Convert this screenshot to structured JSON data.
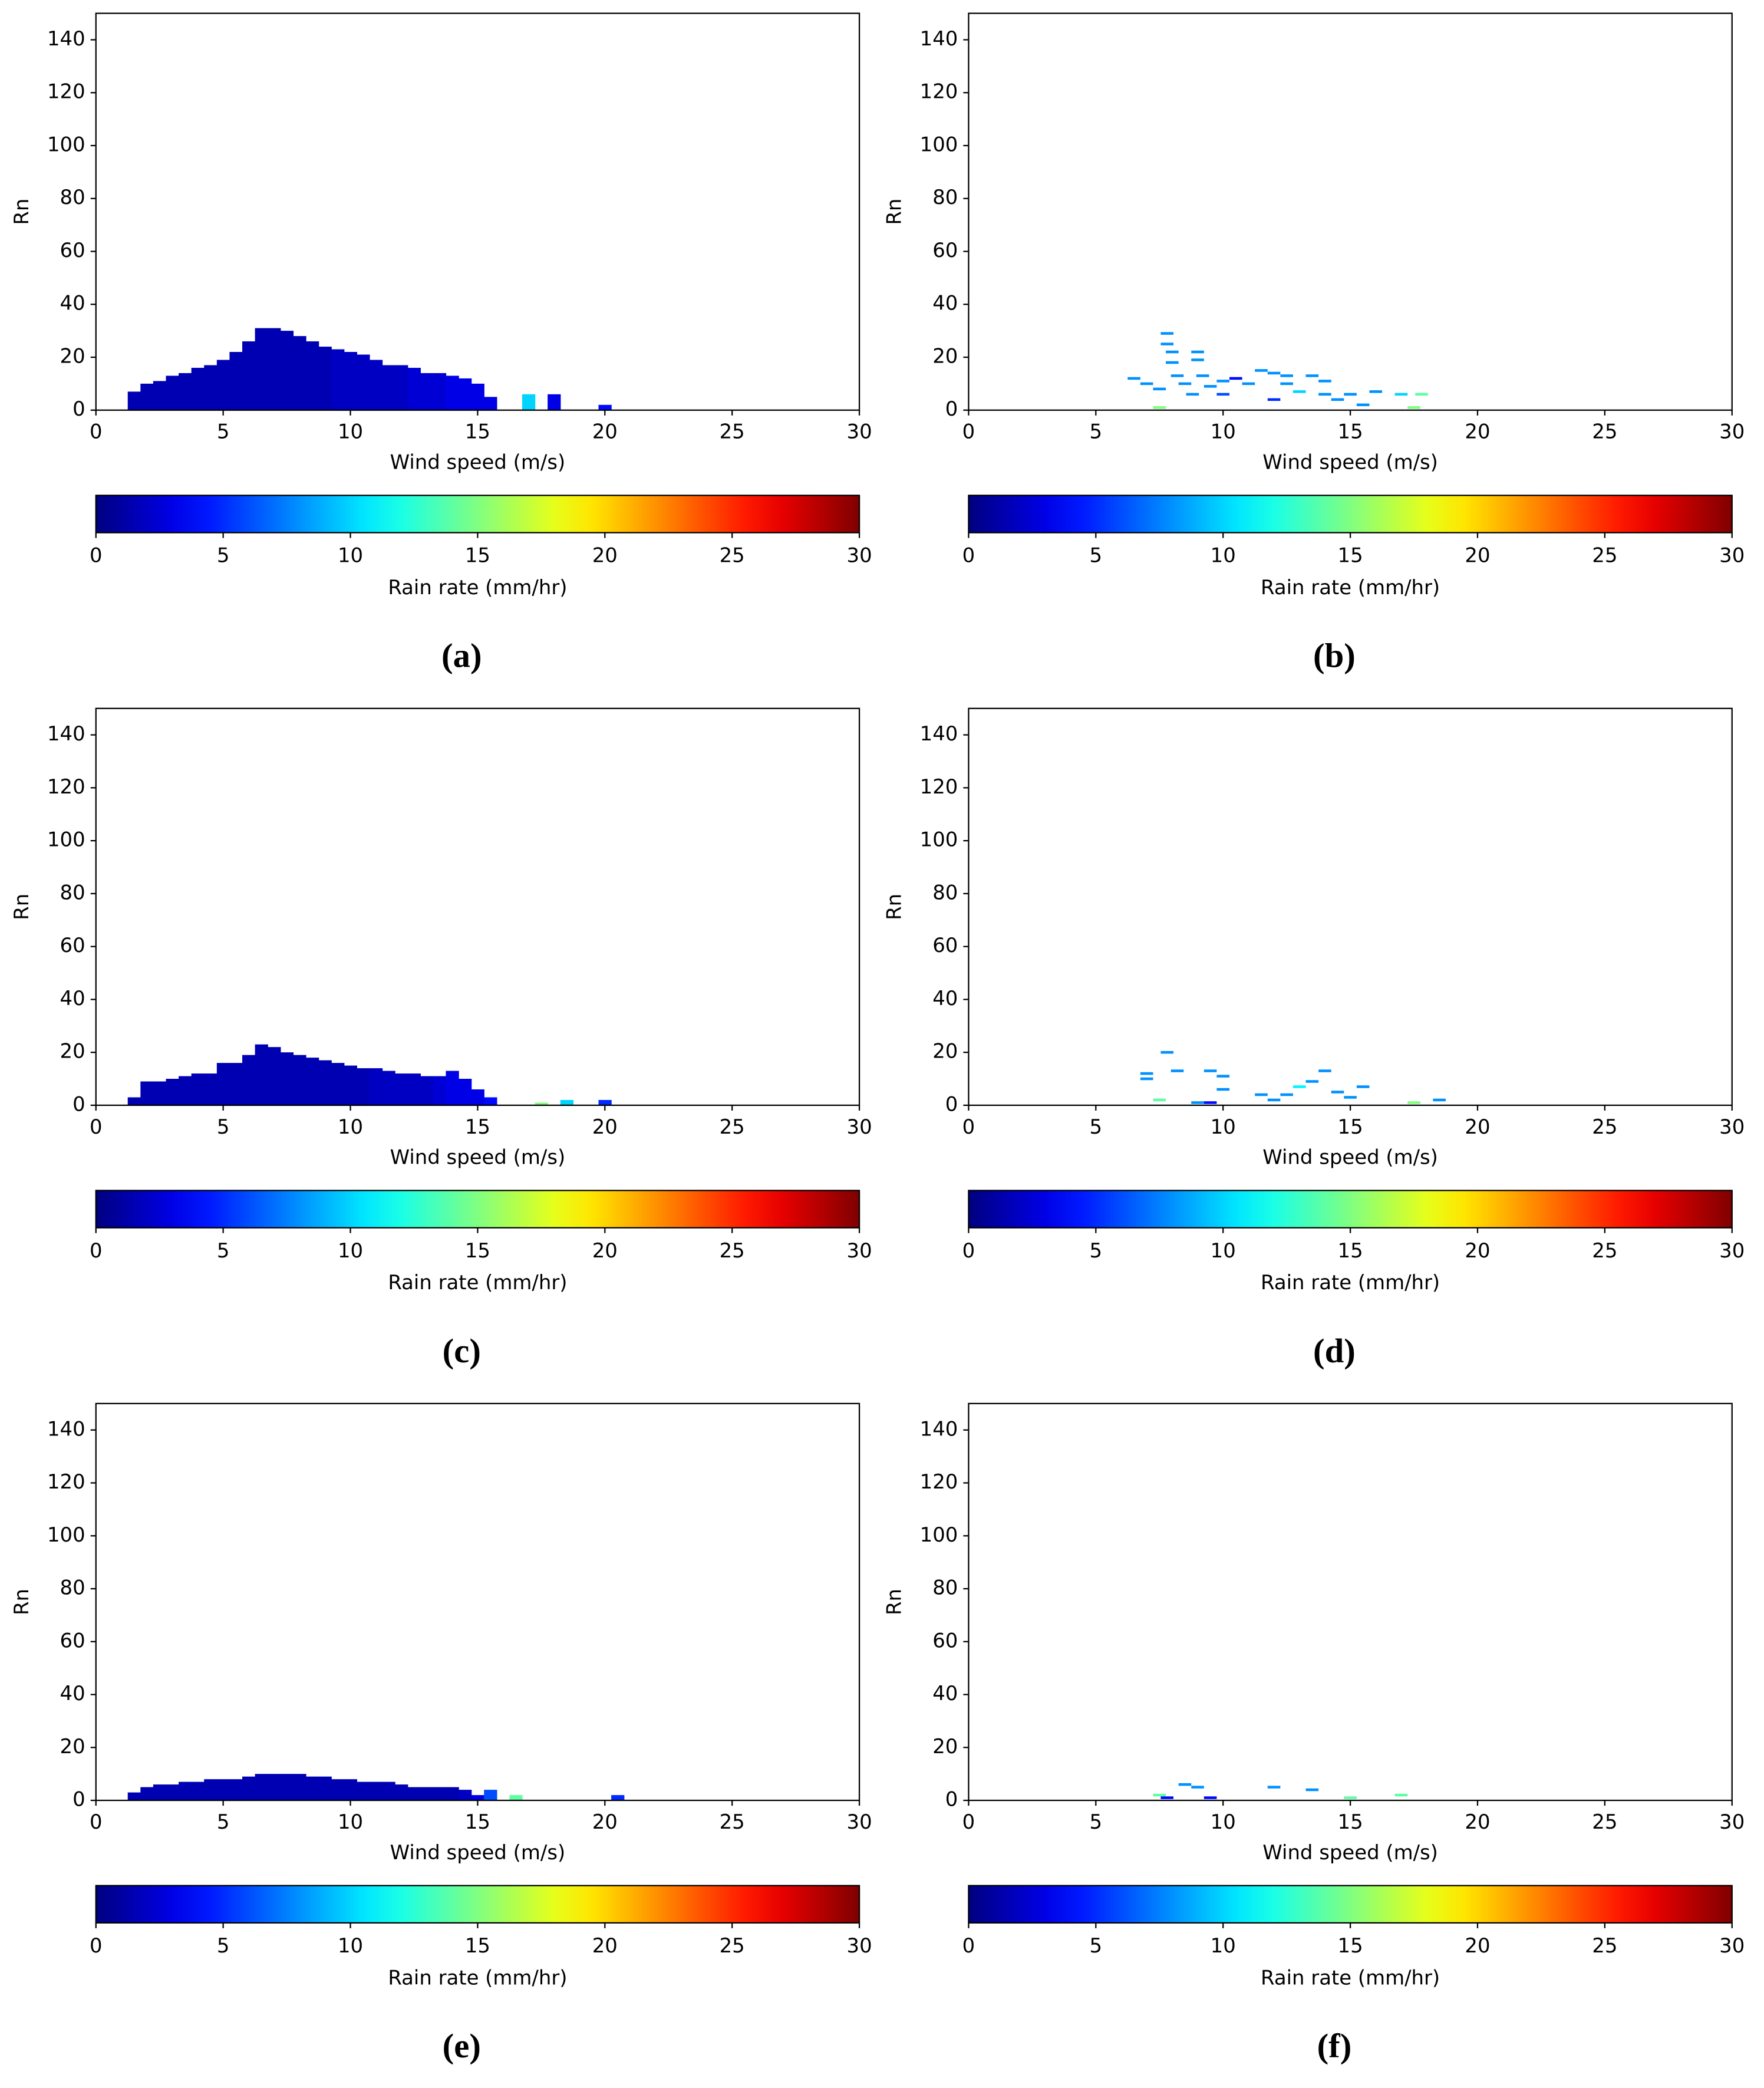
{
  "chart_data": [
    {
      "type": "heatmap",
      "label": "(a)",
      "xlabel": "Wind speed (m/s)",
      "ylabel": "Rn",
      "xlim": [
        0,
        30
      ],
      "xticks": [
        0,
        5,
        10,
        15,
        20,
        25,
        30
      ],
      "ylim": [
        0,
        150
      ],
      "yticks": [
        0,
        20,
        40,
        60,
        80,
        100,
        120,
        140
      ],
      "colormap": "jet",
      "colorbar": {
        "label": "Rain rate (mm/hr)",
        "xlim": [
          0,
          30
        ],
        "xticks": [
          0,
          5,
          10,
          15,
          20,
          25,
          30
        ]
      },
      "x": [
        1.5,
        2,
        2.5,
        3,
        3.5,
        4,
        4.5,
        5,
        5.5,
        6,
        6.5,
        7,
        7.5,
        8,
        8.5,
        9,
        9.5,
        10,
        10.5,
        11,
        11.5,
        12,
        12.5,
        13,
        13.5,
        14,
        14.5,
        15,
        15.5,
        17,
        18,
        20
      ],
      "y": [
        7,
        10,
        11,
        13,
        14,
        16,
        17,
        19,
        22,
        26,
        31,
        31,
        30,
        28,
        26,
        24,
        23,
        22,
        21,
        19,
        17,
        17,
        16,
        14,
        14,
        13,
        12,
        10,
        5,
        6,
        6,
        2
      ],
      "values": [
        1.5,
        1.5,
        1.5,
        1.5,
        1.5,
        1.5,
        1.5,
        1.5,
        1.5,
        1.5,
        1.5,
        1.5,
        1.5,
        1.5,
        1.5,
        1.5,
        2,
        2,
        2,
        2,
        2,
        2,
        2.5,
        2.5,
        2.5,
        3,
        3,
        3,
        3,
        10,
        3,
        4
      ]
    },
    {
      "type": "scatter",
      "label": "(b)",
      "xlabel": "Wind speed (m/s)",
      "ylabel": "Rn",
      "xlim": [
        0,
        30
      ],
      "xticks": [
        0,
        5,
        10,
        15,
        20,
        25,
        30
      ],
      "ylim": [
        0,
        150
      ],
      "yticks": [
        0,
        20,
        40,
        60,
        80,
        100,
        120,
        140
      ],
      "colormap": "jet",
      "colorbar": {
        "label": "Rain rate (mm/hr)",
        "xlim": [
          0,
          30
        ],
        "xticks": [
          0,
          5,
          10,
          15,
          20,
          25,
          30
        ]
      },
      "x": [
        6.5,
        7,
        7.5,
        7.5,
        7.8,
        7.8,
        8,
        8,
        8.2,
        8.5,
        8.8,
        9,
        9,
        9.2,
        9.5,
        10,
        10,
        10.5,
        11,
        11.5,
        12,
        12,
        12.5,
        12.5,
        13,
        13.5,
        14,
        14,
        14.5,
        15,
        15.5,
        16,
        17,
        17.5,
        17.8
      ],
      "y": [
        12,
        10,
        8,
        1,
        29,
        25,
        22,
        18,
        13,
        10,
        6,
        22,
        19,
        13,
        9,
        11,
        6,
        12,
        10,
        15,
        14,
        4,
        13,
        10,
        7,
        13,
        11,
        6,
        4,
        6,
        2,
        7,
        6,
        1,
        6
      ],
      "values": [
        8,
        8,
        8,
        15,
        8,
        8,
        8,
        8,
        8,
        8,
        8,
        8,
        8,
        8,
        8,
        8,
        6,
        4,
        8,
        8,
        8,
        5,
        8,
        8,
        10,
        8,
        8,
        8,
        8,
        8,
        8,
        8,
        10,
        15,
        14
      ]
    },
    {
      "type": "heatmap",
      "label": "(c)",
      "xlabel": "Wind speed (m/s)",
      "ylabel": "Rn",
      "xlim": [
        0,
        30
      ],
      "xticks": [
        0,
        5,
        10,
        15,
        20,
        25,
        30
      ],
      "ylim": [
        0,
        150
      ],
      "yticks": [
        0,
        20,
        40,
        60,
        80,
        100,
        120,
        140
      ],
      "colormap": "jet",
      "colorbar": {
        "label": "Rain rate (mm/hr)",
        "xlim": [
          0,
          30
        ],
        "xticks": [
          0,
          5,
          10,
          15,
          20,
          25,
          30
        ]
      },
      "x": [
        1.5,
        2,
        2.5,
        3,
        3.5,
        4,
        4.5,
        5,
        5.5,
        6,
        6.5,
        7,
        7.5,
        8,
        8.5,
        9,
        9.5,
        10,
        10.5,
        11,
        11.5,
        12,
        12.5,
        13,
        13.5,
        14,
        14.5,
        15,
        15.5,
        17.5,
        18.5,
        20
      ],
      "y": [
        3,
        9,
        9,
        10,
        11,
        12,
        12,
        16,
        16,
        19,
        23,
        22,
        20,
        19,
        18,
        17,
        16,
        15,
        14,
        14,
        13,
        12,
        12,
        11,
        11,
        13,
        10,
        6,
        3,
        1,
        2,
        2
      ],
      "values": [
        1.5,
        1.5,
        1.5,
        1.5,
        1.5,
        1.5,
        1.5,
        1.5,
        1.5,
        1.5,
        1.5,
        1.5,
        1.5,
        1.5,
        1.5,
        1.5,
        1.5,
        1.5,
        1.5,
        2,
        2,
        2,
        2,
        2,
        2.5,
        3,
        3,
        3,
        4,
        15,
        10,
        5
      ]
    },
    {
      "type": "scatter",
      "label": "(d)",
      "xlabel": "Wind speed (m/s)",
      "ylabel": "Rn",
      "xlim": [
        0,
        30
      ],
      "xticks": [
        0,
        5,
        10,
        15,
        20,
        25,
        30
      ],
      "ylim": [
        0,
        150
      ],
      "yticks": [
        0,
        20,
        40,
        60,
        80,
        100,
        120,
        140
      ],
      "colormap": "jet",
      "colorbar": {
        "label": "Rain rate (mm/hr)",
        "xlim": [
          0,
          30
        ],
        "xticks": [
          0,
          5,
          10,
          15,
          20,
          25,
          30
        ]
      },
      "x": [
        7,
        7,
        7.5,
        7.8,
        8.2,
        9,
        9.5,
        9.5,
        10,
        10,
        11.5,
        12,
        12.5,
        13,
        13.5,
        14,
        14.5,
        15,
        15.5,
        17.5,
        18.5
      ],
      "y": [
        12,
        10,
        2,
        20,
        13,
        1,
        13,
        1,
        11,
        6,
        4,
        2,
        4,
        7,
        9,
        13,
        5,
        3,
        7,
        1,
        2
      ],
      "values": [
        8,
        8,
        14,
        8,
        8,
        8,
        8,
        4,
        8,
        8,
        8,
        8,
        8,
        11,
        8,
        8,
        8,
        8,
        8,
        15,
        8
      ]
    },
    {
      "type": "heatmap",
      "label": "(e)",
      "xlabel": "Wind speed (m/s)",
      "ylabel": "Rn",
      "xlim": [
        0,
        30
      ],
      "xticks": [
        0,
        5,
        10,
        15,
        20,
        25,
        30
      ],
      "ylim": [
        0,
        150
      ],
      "yticks": [
        0,
        20,
        40,
        60,
        80,
        100,
        120,
        140
      ],
      "colormap": "jet",
      "colorbar": {
        "label": "Rain rate (mm/hr)",
        "xlim": [
          0,
          30
        ],
        "xticks": [
          0,
          5,
          10,
          15,
          20,
          25,
          30
        ]
      },
      "x": [
        1.5,
        2,
        2.5,
        3,
        3.5,
        4,
        4.5,
        5,
        5.5,
        6,
        6.5,
        7,
        7.5,
        8,
        8.5,
        9,
        9.5,
        10,
        10.5,
        11,
        11.5,
        12,
        12.5,
        13,
        13.5,
        14,
        14.5,
        15,
        15.5,
        16.5,
        20.5
      ],
      "y": [
        3,
        5,
        6,
        6,
        7,
        7,
        8,
        8,
        8,
        9,
        10,
        10,
        10,
        10,
        9,
        9,
        8,
        8,
        7,
        7,
        7,
        6,
        5,
        5,
        5,
        5,
        4,
        2,
        4,
        2,
        2
      ],
      "values": [
        1.5,
        1.5,
        1.5,
        1.5,
        1.5,
        1.5,
        1.5,
        1.5,
        1.5,
        1.5,
        1.5,
        1.5,
        1.5,
        1.5,
        1.5,
        1.5,
        1.5,
        1.5,
        1.5,
        1.5,
        1.5,
        1.5,
        1.5,
        1.5,
        1.5,
        1.5,
        2,
        3,
        6,
        14,
        5
      ]
    },
    {
      "type": "scatter",
      "label": "(f)",
      "xlabel": "Wind speed (m/s)",
      "ylabel": "Rn",
      "xlim": [
        0,
        30
      ],
      "xticks": [
        0,
        5,
        10,
        15,
        20,
        25,
        30
      ],
      "ylim": [
        0,
        150
      ],
      "yticks": [
        0,
        20,
        40,
        60,
        80,
        100,
        120,
        140
      ],
      "colormap": "jet",
      "colorbar": {
        "label": "Rain rate (mm/hr)",
        "xlim": [
          0,
          30
        ],
        "xticks": [
          0,
          5,
          10,
          15,
          20,
          25,
          30
        ]
      },
      "x": [
        7.5,
        7.8,
        8.5,
        9,
        9.5,
        12,
        13.5,
        15,
        17
      ],
      "y": [
        2,
        1,
        6,
        5,
        1,
        5,
        4,
        1,
        2
      ],
      "values": [
        14,
        4,
        8,
        8,
        4,
        8,
        8,
        14,
        14
      ]
    }
  ]
}
